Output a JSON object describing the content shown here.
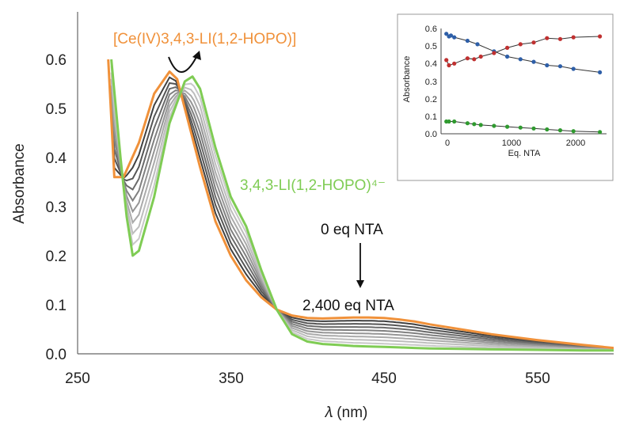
{
  "chart_data": [
    {
      "type": "line",
      "xlabel": "𝜆 (nm)",
      "ylabel": "Absorbance",
      "xlim": [
        250,
        600
      ],
      "ylim": [
        0,
        0.7
      ],
      "x_ticks": [
        "250",
        "350",
        "450",
        "550"
      ],
      "y_ticks": [
        "0.0",
        "0.1",
        "0.2",
        "0.3",
        "0.4",
        "0.5",
        "0.6"
      ],
      "grid": false,
      "colors": {
        "start": "#f0913a",
        "end": "#7fcc54",
        "intermediate": [
          "#404040",
          "#555555",
          "#6a6a6a",
          "#808080",
          "#959595",
          "#aaaaaa",
          "#bdbdbd",
          "#c8c8c8"
        ]
      },
      "labels": {
        "complex": "[Ce(IV)3,4,3-LI(1,2-HOPO)]",
        "ligand": "3,4,3-LI(1,2-HOPO)⁴⁻",
        "start_eq": "0 eq NTA",
        "end_eq": "2,400 eq NTA"
      },
      "series": [
        {
          "role": "start",
          "x": [
            270,
            274,
            280,
            290,
            300,
            310,
            315,
            320,
            330,
            340,
            350,
            360,
            370,
            380,
            390,
            400,
            410,
            420,
            430,
            440,
            450,
            460,
            470,
            480,
            500,
            520,
            550,
            580,
            600
          ],
          "y": [
            0.6,
            0.36,
            0.36,
            0.43,
            0.53,
            0.575,
            0.56,
            0.5,
            0.38,
            0.27,
            0.2,
            0.15,
            0.115,
            0.09,
            0.078,
            0.073,
            0.072,
            0.073,
            0.074,
            0.074,
            0.073,
            0.07,
            0.066,
            0.06,
            0.05,
            0.04,
            0.028,
            0.018,
            0.012
          ]
        },
        {
          "role": "end",
          "x": [
            272,
            278,
            282,
            286,
            290,
            300,
            310,
            320,
            325,
            330,
            340,
            350,
            360,
            370,
            380,
            390,
            400,
            410,
            420,
            430,
            440,
            450,
            460,
            470,
            480,
            500,
            520,
            550,
            580,
            600
          ],
          "y": [
            0.6,
            0.4,
            0.28,
            0.2,
            0.21,
            0.32,
            0.47,
            0.555,
            0.565,
            0.54,
            0.42,
            0.32,
            0.26,
            0.17,
            0.09,
            0.04,
            0.025,
            0.02,
            0.018,
            0.016,
            0.015,
            0.014,
            0.013,
            0.012,
            0.011,
            0.01,
            0.009,
            0.008,
            0.007,
            0.007
          ]
        }
      ]
    },
    {
      "type": "scatter",
      "xlabel": "Eq. NTA",
      "ylabel": "Absorbance",
      "xlim": [
        0,
        2500
      ],
      "ylim": [
        0,
        0.6
      ],
      "x_ticks": [
        "0",
        "1000",
        "2000"
      ],
      "y_ticks": [
        "0.0",
        "0.1",
        "0.2",
        "0.3",
        "0.4",
        "0.5",
        "0.6"
      ],
      "series": [
        {
          "color": "#2e5fa8",
          "x": [
            80,
            120,
            150,
            200,
            400,
            550,
            800,
            1000,
            1200,
            1400,
            1600,
            1800,
            2000,
            2400
          ],
          "y": [
            0.57,
            0.555,
            0.56,
            0.55,
            0.53,
            0.51,
            0.47,
            0.44,
            0.425,
            0.41,
            0.39,
            0.385,
            0.37,
            0.35
          ]
        },
        {
          "color": "#c03030",
          "x": [
            80,
            120,
            200,
            400,
            500,
            600,
            800,
            1000,
            1200,
            1400,
            1600,
            1800,
            2000,
            2400
          ],
          "y": [
            0.42,
            0.39,
            0.4,
            0.43,
            0.425,
            0.44,
            0.46,
            0.49,
            0.51,
            0.52,
            0.545,
            0.54,
            0.55,
            0.555
          ]
        },
        {
          "color": "#2f9a2f",
          "x": [
            80,
            120,
            200,
            400,
            500,
            600,
            800,
            1000,
            1200,
            1400,
            1600,
            1800,
            2000,
            2400
          ],
          "y": [
            0.07,
            0.07,
            0.07,
            0.06,
            0.055,
            0.05,
            0.045,
            0.04,
            0.035,
            0.03,
            0.025,
            0.02,
            0.015,
            0.01
          ]
        }
      ]
    }
  ]
}
